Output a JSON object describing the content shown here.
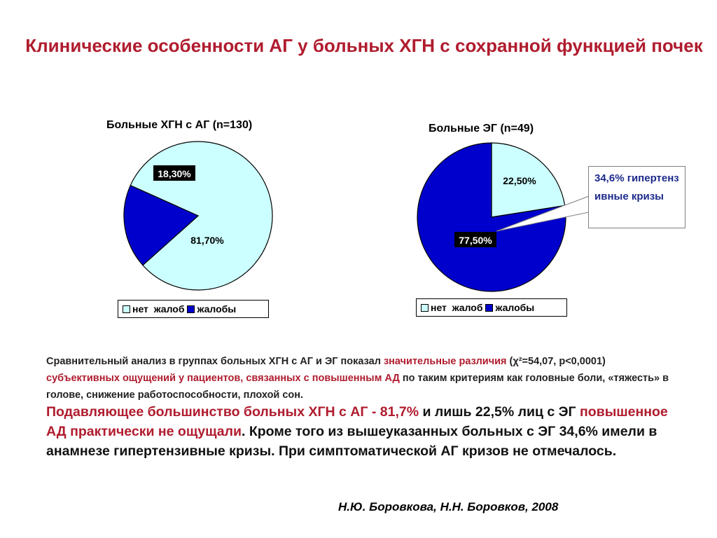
{
  "slide": {
    "title": "Клинические особенности АГ у больных ХГН с сохранной функцией почек"
  },
  "colors": {
    "no_complaints": "#ccffff",
    "complaints": "#0000cc",
    "accent_red": "#b01c2e",
    "callout_text": "#1d2b8c"
  },
  "chart_data": [
    {
      "type": "pie",
      "title": "Больные ХГН с АГ (n=130)",
      "slices": [
        {
          "name": "нет  жалоб",
          "value": 81.7,
          "label": "81,70%"
        },
        {
          "name": "жалобы",
          "value": 18.3,
          "label": "18,30%"
        }
      ],
      "legend": [
        "нет  жалоб",
        "жалобы"
      ],
      "legend_position": "bottom"
    },
    {
      "type": "pie",
      "title": "Больные ЭГ (n=49)",
      "slices": [
        {
          "name": "нет  жалоб",
          "value": 22.5,
          "label": "22,50%"
        },
        {
          "name": "жалобы",
          "value": 77.5,
          "label": "77,50%"
        }
      ],
      "legend": [
        "нет  жалоб",
        "жалобы"
      ],
      "legend_position": "bottom",
      "callout": "34,6% гипертензивные кризы"
    }
  ],
  "text": {
    "p1_a": "Сравнительный анализ в группах больных ХГН с АГ и ЭГ показал ",
    "p1_b": "значительные различия",
    "p1_c": " (χ²=54,07, р<0,0001) ",
    "p1_d": "субъективных ощущений у пациентов, связанных с повышенным АД",
    "p1_e": " по таким критериям как головные боли, «тяжесть» в голове, снижение работоспособности, плохой сон.",
    "p2_a": "Подавляющее большинство больных ХГН с АГ - 81,7%",
    "p2_b": " и лишь 22,5% лиц с ЭГ ",
    "p2_c": "повышенное АД практически не ощущали",
    "p2_d": ". Кроме того из вышеуказанных больных с ЭГ 34,6% имели в анамнезе гипертензивные кризы. При симптоматической АГ кризов не отмечалось.",
    "author": "Н.Ю. Боровкова, Н.Н. Боровков, 2008"
  }
}
